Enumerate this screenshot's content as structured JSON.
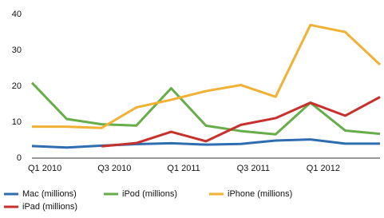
{
  "chart_data": {
    "type": "line",
    "categories": [
      "Q1 2010",
      null,
      "Q3 2010",
      null,
      "Q1 2011",
      null,
      "Q3 2011",
      null,
      "Q1 2012",
      null,
      null
    ],
    "series": [
      {
        "name": "Mac (millions)",
        "color": "#2e6db0",
        "values": [
          3.36,
          2.94,
          3.47,
          3.89,
          4.13,
          3.76,
          3.95,
          4.89,
          5.2,
          4.02,
          4.02
        ]
      },
      {
        "name": "iPod (millions)",
        "color": "#67ad4a",
        "values": [
          20.97,
          10.89,
          9.41,
          9.05,
          19.45,
          9.02,
          7.54,
          6.62,
          15.4,
          7.67,
          6.75
        ]
      },
      {
        "name": "iPhone (millions)",
        "color": "#f0b134",
        "values": [
          8.74,
          8.75,
          8.4,
          14.1,
          16.24,
          18.65,
          20.34,
          17.07,
          37.04,
          35.1,
          26.0
        ]
      },
      {
        "name": "iPad (millions)",
        "color": "#c7302c",
        "values": [
          null,
          null,
          3.27,
          4.19,
          7.33,
          4.69,
          9.25,
          11.12,
          15.43,
          11.8,
          17.0
        ]
      }
    ],
    "ylim": [
      0,
      40
    ],
    "yticks": [
      0,
      10,
      20,
      30,
      40
    ],
    "grid": false,
    "legend": "bottom"
  }
}
